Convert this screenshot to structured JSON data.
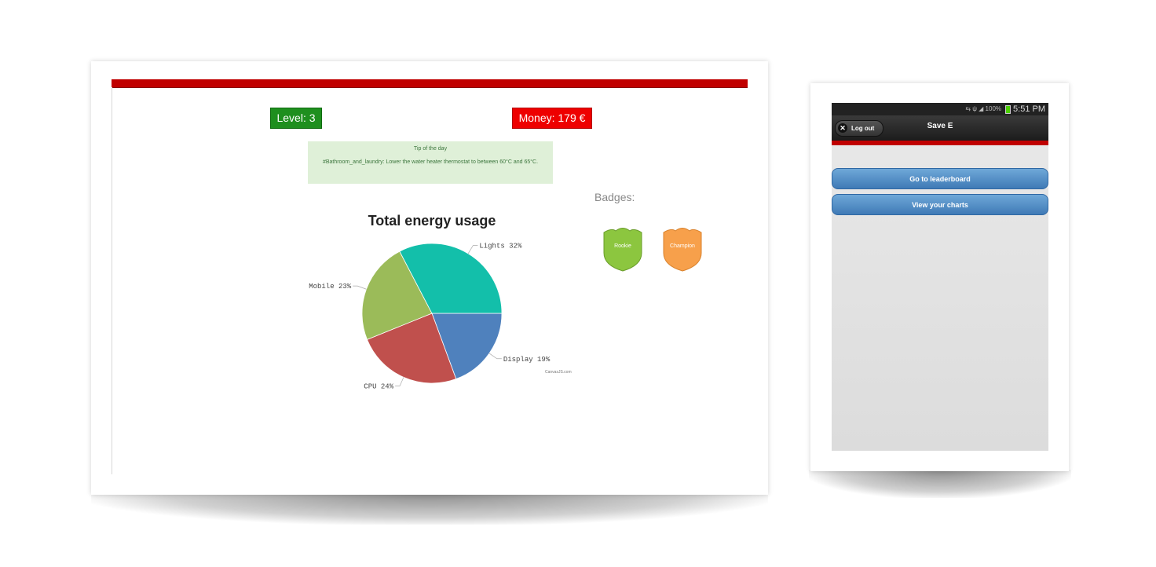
{
  "desktop": {
    "level": "Level: 3",
    "money": "Money: 179 €",
    "tip": {
      "title": "Tip of the day",
      "text": "#Bathroom_and_laundry: Lower the water heater thermostat to between 60°C and 65°C."
    },
    "badges_label": "Badges:",
    "badges": [
      {
        "name": "Rookie",
        "color": "#8cc63f"
      },
      {
        "name": "Champion",
        "color": "#f7a04b"
      }
    ],
    "credit": "CanvasJS.com"
  },
  "chart_data": {
    "type": "pie",
    "title": "Total energy usage",
    "categories": [
      "Lights",
      "Display",
      "CPU",
      "Mobile"
    ],
    "values": [
      32,
      19,
      24,
      23
    ],
    "labels": [
      "Lights 32%",
      "Display 19%",
      "CPU 24%",
      "Mobile 23%"
    ],
    "colors": [
      "#13bfaa",
      "#4f81bd",
      "#c0504d",
      "#9bbb59"
    ]
  },
  "mobile": {
    "status_time": "5:51 PM",
    "status_icons": "⇆ ψ ◢ 100%",
    "logout_label": "Log out",
    "title": "Save E",
    "buttons": [
      "Go to leaderboard",
      "View your charts"
    ]
  }
}
